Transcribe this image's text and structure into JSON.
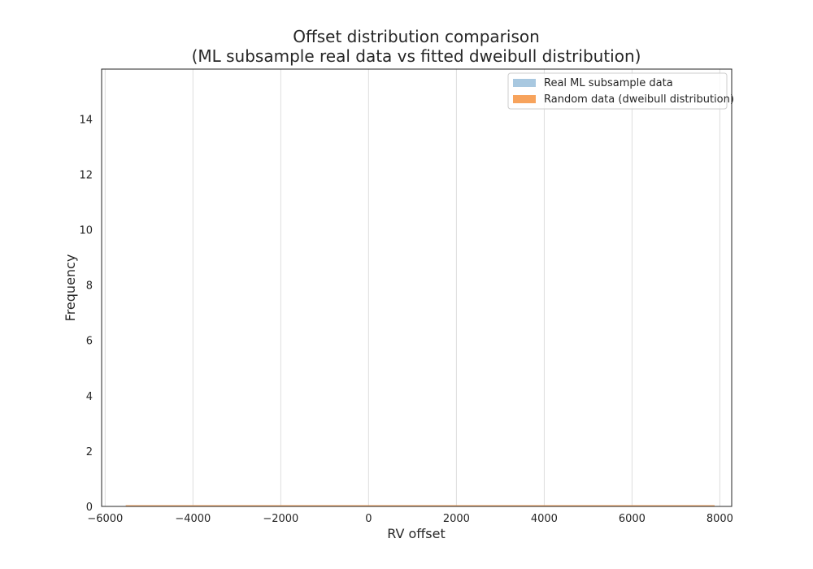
{
  "chart_data": {
    "type": "bar",
    "title_line1": "Offset distribution comparison",
    "title_line2": "(ML subsample real data vs fitted dweibull distribution)",
    "xlabel": "RV offset",
    "ylabel": "Frequency",
    "xlim": [
      -6080,
      8270
    ],
    "ylim": [
      0,
      15.8
    ],
    "xticks": [
      -6000,
      -4000,
      -2000,
      0,
      2000,
      4000,
      6000,
      8000
    ],
    "xtick_labels": [
      "−6000",
      "−4000",
      "−2000",
      "0",
      "2000",
      "4000",
      "6000",
      "8000"
    ],
    "yticks": [
      0,
      2,
      4,
      6,
      8,
      10,
      12,
      14
    ],
    "ytick_labels": [
      "0",
      "2",
      "4",
      "6",
      "8",
      "10",
      "12",
      "14"
    ],
    "grid": "vertical",
    "legend_position": "top-right",
    "series": [
      {
        "name": "Real ML subsample data",
        "color": "#a8c8e0",
        "x_range": [
          -5530,
          7880
        ],
        "values": [
          0.03
        ]
      },
      {
        "name": "Random data (dweibull distribution)",
        "color": "#f7a35c",
        "x_range": [
          -5530,
          7880
        ],
        "values": [
          0.03
        ]
      }
    ]
  }
}
